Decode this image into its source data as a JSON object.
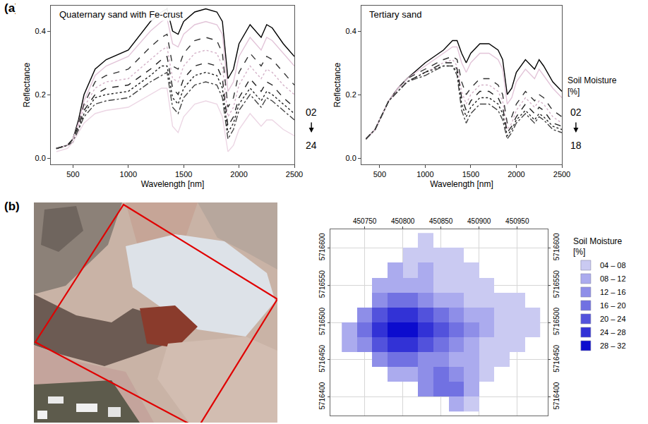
{
  "panel_labels": [
    "(a)",
    "(b)"
  ],
  "chart_data": [
    {
      "type": "line",
      "title": "Quaternary sand with Fe-crust",
      "x_label": "Wavelength [nm]",
      "y_label": "Reflectance",
      "x": [
        350,
        450,
        500,
        550,
        600,
        700,
        800,
        1000,
        1200,
        1300,
        1350,
        1400,
        1450,
        1500,
        1600,
        1700,
        1800,
        1850,
        1900,
        1950,
        2000,
        2100,
        2200,
        2250,
        2300,
        2400,
        2500
      ],
      "series": [
        {
          "color": "#000000",
          "line_style": "solid",
          "values": [
            0.03,
            0.04,
            0.06,
            0.12,
            0.2,
            0.28,
            0.31,
            0.34,
            0.43,
            0.46,
            0.47,
            0.4,
            0.39,
            0.43,
            0.46,
            0.47,
            0.46,
            0.43,
            0.25,
            0.28,
            0.36,
            0.42,
            0.38,
            0.42,
            0.41,
            0.36,
            0.32
          ]
        },
        {
          "color": "#e2c4d8",
          "line_style": "solid",
          "values": [
            0.03,
            0.04,
            0.06,
            0.11,
            0.18,
            0.26,
            0.29,
            0.32,
            0.4,
            0.43,
            0.44,
            0.36,
            0.35,
            0.39,
            0.42,
            0.43,
            0.42,
            0.39,
            0.21,
            0.24,
            0.32,
            0.38,
            0.34,
            0.38,
            0.37,
            0.33,
            0.29
          ]
        },
        {
          "color": "#333333",
          "line_style": "dashed",
          "values": [
            0.03,
            0.04,
            0.06,
            0.11,
            0.17,
            0.24,
            0.26,
            0.28,
            0.35,
            0.38,
            0.39,
            0.29,
            0.28,
            0.33,
            0.37,
            0.38,
            0.37,
            0.33,
            0.16,
            0.19,
            0.27,
            0.33,
            0.29,
            0.32,
            0.31,
            0.27,
            0.23
          ]
        },
        {
          "color": "#d4b2c8",
          "line_style": "dotted",
          "values": [
            0.03,
            0.04,
            0.06,
            0.1,
            0.16,
            0.22,
            0.24,
            0.25,
            0.31,
            0.34,
            0.35,
            0.25,
            0.24,
            0.29,
            0.33,
            0.34,
            0.33,
            0.29,
            0.13,
            0.16,
            0.23,
            0.29,
            0.25,
            0.28,
            0.27,
            0.23,
            0.2
          ]
        },
        {
          "color": "#222222",
          "line_style": "dashed",
          "values": [
            0.03,
            0.04,
            0.06,
            0.1,
            0.15,
            0.2,
            0.22,
            0.23,
            0.28,
            0.31,
            0.32,
            0.22,
            0.2,
            0.25,
            0.29,
            0.3,
            0.29,
            0.25,
            0.1,
            0.13,
            0.19,
            0.25,
            0.21,
            0.24,
            0.23,
            0.19,
            0.16
          ]
        },
        {
          "color": "#222222",
          "line_style": "dotted",
          "values": [
            0.03,
            0.04,
            0.05,
            0.09,
            0.14,
            0.19,
            0.2,
            0.21,
            0.26,
            0.29,
            0.29,
            0.19,
            0.17,
            0.22,
            0.26,
            0.27,
            0.26,
            0.22,
            0.08,
            0.11,
            0.17,
            0.22,
            0.18,
            0.21,
            0.2,
            0.17,
            0.14
          ]
        },
        {
          "color": "#444444",
          "line_style": "dashdot",
          "values": [
            0.03,
            0.04,
            0.05,
            0.09,
            0.13,
            0.17,
            0.18,
            0.19,
            0.24,
            0.26,
            0.27,
            0.16,
            0.14,
            0.19,
            0.23,
            0.24,
            0.23,
            0.19,
            0.06,
            0.09,
            0.15,
            0.2,
            0.16,
            0.19,
            0.18,
            0.15,
            0.12
          ]
        },
        {
          "color": "#ecd6e4",
          "line_style": "solid",
          "values": [
            0.02,
            0.03,
            0.05,
            0.08,
            0.11,
            0.14,
            0.15,
            0.16,
            0.2,
            0.22,
            0.22,
            0.1,
            0.08,
            0.13,
            0.17,
            0.18,
            0.17,
            0.13,
            0.02,
            0.04,
            0.09,
            0.14,
            0.1,
            0.12,
            0.12,
            0.09,
            0.07
          ]
        }
      ],
      "xlim": [
        300,
        2500
      ],
      "ylim": [
        -0.02,
        0.48
      ],
      "xticks": [
        500,
        1000,
        1500,
        2000,
        2500
      ],
      "yticks": [
        {
          "value": 0,
          "label": "0.0"
        },
        {
          "value": 0.2,
          "label": "0.2"
        },
        {
          "value": 0.4,
          "label": "0.4"
        }
      ],
      "grid": false,
      "moisture_scale": {
        "from": "02",
        "to": "24"
      }
    },
    {
      "type": "line",
      "title": "Tertiary sand",
      "x_label": "Wavelength [nm]",
      "y_label": "Reflectance",
      "x": [
        350,
        450,
        500,
        550,
        600,
        700,
        800,
        1000,
        1200,
        1300,
        1350,
        1400,
        1450,
        1500,
        1600,
        1700,
        1800,
        1850,
        1900,
        1950,
        2000,
        2100,
        2200,
        2250,
        2300,
        2400,
        2500
      ],
      "series": [
        {
          "color": "#000000",
          "line_style": "solid",
          "values": [
            0.06,
            0.09,
            0.12,
            0.15,
            0.18,
            0.22,
            0.25,
            0.3,
            0.34,
            0.37,
            0.37,
            0.33,
            0.3,
            0.33,
            0.36,
            0.36,
            0.34,
            0.31,
            0.2,
            0.22,
            0.27,
            0.31,
            0.28,
            0.31,
            0.29,
            0.24,
            0.21
          ]
        },
        {
          "color": "#e2c4d8",
          "line_style": "solid",
          "values": [
            0.06,
            0.09,
            0.12,
            0.15,
            0.18,
            0.22,
            0.25,
            0.29,
            0.33,
            0.35,
            0.35,
            0.3,
            0.27,
            0.3,
            0.33,
            0.33,
            0.31,
            0.28,
            0.17,
            0.19,
            0.24,
            0.28,
            0.25,
            0.28,
            0.26,
            0.22,
            0.19
          ]
        },
        {
          "color": "#333333",
          "line_style": "dashed",
          "values": [
            0.06,
            0.09,
            0.12,
            0.15,
            0.18,
            0.22,
            0.25,
            0.28,
            0.31,
            0.32,
            0.31,
            0.24,
            0.2,
            0.22,
            0.25,
            0.25,
            0.23,
            0.2,
            0.11,
            0.13,
            0.17,
            0.21,
            0.18,
            0.2,
            0.19,
            0.15,
            0.13
          ]
        },
        {
          "color": "#d4b2c8",
          "line_style": "dotted",
          "values": [
            0.06,
            0.09,
            0.12,
            0.15,
            0.18,
            0.22,
            0.24,
            0.27,
            0.3,
            0.31,
            0.29,
            0.21,
            0.17,
            0.2,
            0.23,
            0.23,
            0.21,
            0.18,
            0.09,
            0.11,
            0.15,
            0.19,
            0.16,
            0.18,
            0.17,
            0.13,
            0.11
          ]
        },
        {
          "color": "#222222",
          "line_style": "dashed",
          "values": [
            0.06,
            0.09,
            0.12,
            0.15,
            0.18,
            0.21,
            0.24,
            0.27,
            0.3,
            0.3,
            0.28,
            0.19,
            0.15,
            0.18,
            0.21,
            0.21,
            0.19,
            0.16,
            0.08,
            0.1,
            0.13,
            0.17,
            0.14,
            0.16,
            0.15,
            0.11,
            0.1
          ]
        },
        {
          "color": "#222222",
          "line_style": "dotted",
          "values": [
            0.06,
            0.09,
            0.12,
            0.15,
            0.18,
            0.21,
            0.24,
            0.27,
            0.29,
            0.29,
            0.27,
            0.17,
            0.13,
            0.16,
            0.19,
            0.19,
            0.17,
            0.14,
            0.07,
            0.09,
            0.12,
            0.15,
            0.12,
            0.14,
            0.13,
            0.1,
            0.09
          ]
        },
        {
          "color": "#444444",
          "line_style": "dashdot",
          "values": [
            0.06,
            0.09,
            0.12,
            0.15,
            0.18,
            0.21,
            0.24,
            0.26,
            0.29,
            0.29,
            0.26,
            0.15,
            0.11,
            0.14,
            0.17,
            0.17,
            0.15,
            0.12,
            0.06,
            0.08,
            0.11,
            0.14,
            0.11,
            0.13,
            0.12,
            0.09,
            0.08
          ]
        }
      ],
      "xlim": [
        300,
        2500
      ],
      "ylim": [
        -0.02,
        0.48
      ],
      "xticks": [
        500,
        1000,
        1500,
        2000,
        2500
      ],
      "yticks": [
        {
          "value": 0,
          "label": "0.0"
        },
        {
          "value": 0.2,
          "label": "0.2"
        },
        {
          "value": 0.4,
          "label": "0.4"
        }
      ],
      "grid": false,
      "moisture_scale": {
        "title": "Soil Moisture [%]",
        "from": "02",
        "to": "18"
      }
    },
    {
      "type": "heatmap",
      "x": [
        450730,
        450750,
        450770,
        450790,
        450810,
        450830,
        450850,
        450870,
        450890,
        450910,
        450930,
        450950,
        450970
      ],
      "y": [
        5716390,
        5716410,
        5716430,
        5716450,
        5716470,
        5716490,
        5716510,
        5716530,
        5716550,
        5716570,
        5716590,
        5716610
      ],
      "z": [
        [
          null,
          null,
          null,
          null,
          null,
          null,
          null,
          10,
          6,
          null,
          null,
          null,
          null
        ],
        [
          null,
          null,
          null,
          null,
          null,
          14,
          18,
          18,
          10,
          null,
          null,
          null,
          null
        ],
        [
          null,
          null,
          null,
          10,
          10,
          14,
          18,
          14,
          10,
          6,
          null,
          null,
          null
        ],
        [
          null,
          null,
          14,
          18,
          18,
          14,
          14,
          10,
          10,
          6,
          6,
          null,
          null
        ],
        [
          10,
          14,
          22,
          26,
          26,
          22,
          18,
          14,
          10,
          6,
          6,
          6,
          null
        ],
        [
          10,
          18,
          26,
          30,
          30,
          26,
          22,
          18,
          14,
          10,
          6,
          6,
          6
        ],
        [
          null,
          14,
          22,
          26,
          26,
          22,
          18,
          14,
          10,
          10,
          6,
          6,
          6
        ],
        [
          null,
          null,
          14,
          18,
          18,
          14,
          10,
          10,
          6,
          6,
          6,
          6,
          null
        ],
        [
          null,
          null,
          10,
          10,
          10,
          10,
          6,
          6,
          6,
          6,
          null,
          null,
          null
        ],
        [
          null,
          null,
          null,
          10,
          6,
          10,
          6,
          6,
          6,
          null,
          null,
          null,
          null
        ],
        [
          null,
          null,
          null,
          null,
          6,
          6,
          6,
          6,
          null,
          null,
          null,
          null,
          null
        ],
        [
          null,
          null,
          null,
          null,
          null,
          6,
          null,
          null,
          null,
          null,
          null,
          null,
          null
        ]
      ],
      "xlim": [
        450705,
        450990
      ],
      "ylim": [
        5716375,
        5716625
      ],
      "xticks": [
        450750,
        450800,
        450850,
        450900,
        450950
      ],
      "yticks": [
        5716400,
        5716450,
        5716500,
        5716550,
        5716600
      ],
      "grid": true,
      "legend": "right",
      "legend_title": "Soil Moisture [%]",
      "classes": [
        {
          "label": "04 – 08",
          "range": [
            4,
            8
          ],
          "color": "#cacaf2"
        },
        {
          "label": "08 – 12",
          "range": [
            8,
            12
          ],
          "color": "#ababee"
        },
        {
          "label": "12 – 16",
          "range": [
            12,
            16
          ],
          "color": "#8e8ee8"
        },
        {
          "label": "16 – 20",
          "range": [
            16,
            20
          ],
          "color": "#7171e2"
        },
        {
          "label": "20 – 24",
          "range": [
            20,
            24
          ],
          "color": "#5252dc"
        },
        {
          "label": "24 – 28",
          "range": [
            24,
            28
          ],
          "color": "#3232d6"
        },
        {
          "label": "28 – 32",
          "range": [
            28,
            32
          ],
          "color": "#0c0cce"
        }
      ]
    }
  ]
}
